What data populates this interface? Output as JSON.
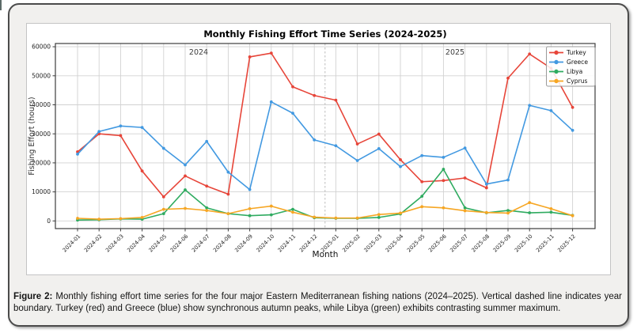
{
  "figure": {
    "caption_label": "Figure 2:",
    "caption_text": "Monthly fishing effort time series for the four major Eastern Mediterranean fishing nations (2024–2025). Vertical dashed line indicates year boundary. Turkey (red) and Greece (blue) show synchronous autumn peaks, while Libya (green) exhibits contrasting summer maximum."
  },
  "chart_data": {
    "type": "line",
    "title": "Monthly Fishing Effort Time Series (2024-2025)",
    "xlabel": "Month",
    "ylabel": "Fishing Effort (hours)",
    "ylim": [
      0,
      60000
    ],
    "yticks": [
      0,
      10000,
      20000,
      30000,
      40000,
      50000,
      60000
    ],
    "grid": true,
    "legend_position": "upper right",
    "year_annotations": [
      {
        "text": "2024"
      },
      {
        "text": "2025"
      }
    ],
    "year_boundary": {
      "style": "dashed",
      "between": [
        "2024-12",
        "2025-01"
      ]
    },
    "categories": [
      "2024-01",
      "2024-02",
      "2024-03",
      "2024-04",
      "2024-05",
      "2024-06",
      "2024-07",
      "2024-08",
      "2024-09",
      "2024-10",
      "2024-11",
      "2024-12",
      "2025-01",
      "2025-02",
      "2025-03",
      "2025-04",
      "2025-05",
      "2025-06",
      "2025-07",
      "2025-08",
      "2025-09",
      "2025-10",
      "2025-11",
      "2025-12"
    ],
    "series": [
      {
        "name": "Turkey",
        "color": "#e74539",
        "values": [
          23800,
          30000,
          29400,
          17200,
          8300,
          15500,
          12000,
          9200,
          56500,
          57800,
          46200,
          43200,
          41600,
          26500,
          29900,
          21100,
          13500,
          13900,
          14800,
          11400,
          49200,
          57500,
          52600,
          39100
        ]
      },
      {
        "name": "Greece",
        "color": "#4299e1",
        "values": [
          23000,
          30800,
          32700,
          32200,
          25000,
          19300,
          27400,
          16800,
          10800,
          41000,
          37100,
          27900,
          25900,
          20800,
          24900,
          18700,
          22500,
          21900,
          25100,
          12700,
          14100,
          39800,
          38000,
          31200
        ]
      },
      {
        "name": "Libya",
        "color": "#2fab60",
        "values": [
          300,
          400,
          700,
          600,
          2500,
          10700,
          4500,
          2500,
          1800,
          2100,
          4000,
          1100,
          900,
          900,
          1200,
          2400,
          8500,
          17800,
          4500,
          2800,
          3600,
          2800,
          3000,
          1900
        ]
      },
      {
        "name": "Cyprus",
        "color": "#f6a623",
        "values": [
          900,
          600,
          800,
          1200,
          4000,
          4300,
          3600,
          2500,
          4200,
          5100,
          3000,
          1300,
          1000,
          1000,
          2200,
          2700,
          4900,
          4500,
          3500,
          2900,
          2700,
          6300,
          4200,
          1800
        ]
      }
    ]
  }
}
